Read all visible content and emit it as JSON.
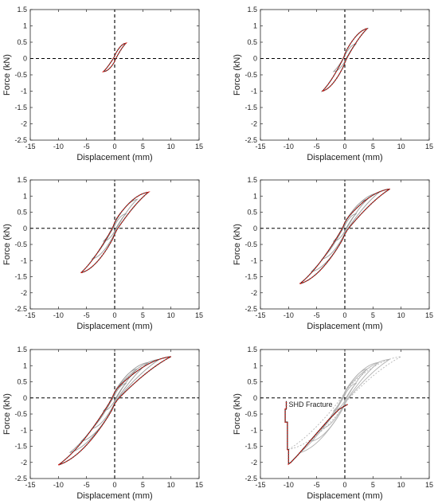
{
  "figure": {
    "colors": {
      "axes": "#262626",
      "zero_lines": "#000000",
      "loop_grey": "#9a9a9a",
      "loop_red": "#d9201a",
      "loop_dark": "#2b2b2b"
    }
  },
  "chart_data": [
    {
      "type": "line",
      "xlabel": "Displacement (mm)",
      "ylabel": "Force (kN)",
      "xlim": [
        -15,
        15
      ],
      "ylim": [
        -2.5,
        1.5
      ],
      "xticks": [
        -15,
        -10,
        -5,
        0,
        5,
        10,
        15
      ],
      "yticks": [
        1.5,
        1,
        0.5,
        0,
        -0.5,
        -1,
        -1.5,
        -2,
        -2.5
      ],
      "zero_lines": "dashed",
      "grid": false,
      "loops": [
        {
          "amplitude_mm": 2,
          "peak_force_kN": 0.47,
          "min_force_kN": -0.4,
          "style": "red-dotted"
        }
      ]
    },
    {
      "type": "line",
      "xlabel": "Displacement (mm)",
      "ylabel": "Force (kN)",
      "xlim": [
        -15,
        15
      ],
      "ylim": [
        -2.5,
        1.5
      ],
      "xticks": [
        -15,
        -10,
        -5,
        0,
        5,
        10,
        15
      ],
      "yticks": [
        1.5,
        1,
        0.5,
        0,
        -0.5,
        -1,
        -1.5,
        -2,
        -2.5
      ],
      "zero_lines": "dashed",
      "grid": false,
      "loops": [
        {
          "amplitude_mm": 2,
          "peak_force_kN": 0.45,
          "min_force_kN": -0.4,
          "style": "grey"
        },
        {
          "amplitude_mm": 4,
          "peak_force_kN": 0.92,
          "min_force_kN": -1.0,
          "style": "red-dotted"
        }
      ]
    },
    {
      "type": "line",
      "xlabel": "Displacement (mm)",
      "ylabel": "Force (kN)",
      "xlim": [
        -15,
        15
      ],
      "ylim": [
        -2.5,
        1.5
      ],
      "xticks": [
        -15,
        -10,
        -5,
        0,
        5,
        10,
        15
      ],
      "yticks": [
        1.5,
        1,
        0.5,
        0,
        -0.5,
        -1,
        -1.5,
        -2,
        -2.5
      ],
      "zero_lines": "dashed",
      "grid": false,
      "loops": [
        {
          "amplitude_mm": 2,
          "peak_force_kN": 0.45,
          "min_force_kN": -0.4,
          "style": "grey"
        },
        {
          "amplitude_mm": 4,
          "peak_force_kN": 0.9,
          "min_force_kN": -0.95,
          "style": "grey"
        },
        {
          "amplitude_mm": 6,
          "peak_force_kN": 1.12,
          "min_force_kN": -1.38,
          "style": "red-dotted"
        }
      ]
    },
    {
      "type": "line",
      "xlabel": "Displacement (mm)",
      "ylabel": "Force (kN)",
      "xlim": [
        -15,
        15
      ],
      "ylim": [
        -2.5,
        1.5
      ],
      "xticks": [
        -15,
        -10,
        -5,
        0,
        5,
        10,
        15
      ],
      "yticks": [
        1.5,
        1,
        0.5,
        0,
        -0.5,
        -1,
        -1.5,
        -2,
        -2.5
      ],
      "zero_lines": "dashed",
      "grid": false,
      "loops": [
        {
          "amplitude_mm": 2,
          "peak_force_kN": 0.45,
          "min_force_kN": -0.4,
          "style": "grey"
        },
        {
          "amplitude_mm": 4,
          "peak_force_kN": 0.9,
          "min_force_kN": -0.95,
          "style": "grey"
        },
        {
          "amplitude_mm": 6,
          "peak_force_kN": 1.1,
          "min_force_kN": -1.35,
          "style": "grey"
        },
        {
          "amplitude_mm": 8,
          "peak_force_kN": 1.22,
          "min_force_kN": -1.72,
          "style": "red-dotted"
        }
      ]
    },
    {
      "type": "line",
      "xlabel": "Displacement (mm)",
      "ylabel": "Force (kN)",
      "xlim": [
        -15,
        15
      ],
      "ylim": [
        -2.5,
        1.5
      ],
      "xticks": [
        -15,
        -10,
        -5,
        0,
        5,
        10,
        15
      ],
      "yticks": [
        1.5,
        1,
        0.5,
        0,
        -0.5,
        -1,
        -1.5,
        -2,
        -2.5
      ],
      "zero_lines": "dashed",
      "grid": false,
      "loops": [
        {
          "amplitude_mm": 2,
          "peak_force_kN": 0.45,
          "min_force_kN": -0.4,
          "style": "grey"
        },
        {
          "amplitude_mm": 4,
          "peak_force_kN": 0.9,
          "min_force_kN": -0.95,
          "style": "grey"
        },
        {
          "amplitude_mm": 6,
          "peak_force_kN": 1.1,
          "min_force_kN": -1.35,
          "style": "grey"
        },
        {
          "amplitude_mm": 8,
          "peak_force_kN": 1.2,
          "min_force_kN": -1.7,
          "style": "grey"
        },
        {
          "amplitude_mm": 10,
          "peak_force_kN": 1.28,
          "min_force_kN": -2.08,
          "style": "red-dotted"
        }
      ]
    },
    {
      "type": "line",
      "xlabel": "Displacement (mm)",
      "ylabel": "Force (kN)",
      "xlim": [
        -15,
        15
      ],
      "ylim": [
        -2.5,
        1.5
      ],
      "xticks": [
        -15,
        -10,
        -5,
        0,
        5,
        10,
        15
      ],
      "yticks": [
        1.5,
        1,
        0.5,
        0,
        -0.5,
        -1,
        -1.5,
        -2,
        -2.5
      ],
      "zero_lines": "dashed",
      "grid": false,
      "loops": [
        {
          "amplitude_mm": 2,
          "peak_force_kN": 0.45,
          "min_force_kN": -0.4,
          "style": "light-grey"
        },
        {
          "amplitude_mm": 4,
          "peak_force_kN": 0.9,
          "min_force_kN": -0.95,
          "style": "light-grey"
        },
        {
          "amplitude_mm": 6,
          "peak_force_kN": 1.1,
          "min_force_kN": -1.35,
          "style": "light-grey"
        },
        {
          "amplitude_mm": 8,
          "peak_force_kN": 1.2,
          "min_force_kN": -1.7,
          "style": "light-grey"
        },
        {
          "amplitude_mm": 10,
          "peak_force_kN": 1.28,
          "min_force_kN": -1.6,
          "style": "light-grey-dotted"
        }
      ],
      "fracture_path": {
        "x": [
          0.5,
          -1,
          -3,
          -5,
          -7,
          -8.5,
          -9.6,
          -10,
          -10,
          -10.2,
          -10.2,
          -10.6,
          -10.6,
          -10.4,
          -10.4
        ],
        "y": [
          -0.2,
          -0.35,
          -0.7,
          -1.1,
          -1.5,
          -1.8,
          -2.0,
          -2.05,
          -1.6,
          -1.6,
          -0.75,
          -0.75,
          -0.35,
          -0.35,
          -0.1
        ]
      },
      "annotation": {
        "text": "SHD Fracture",
        "x": -10.4,
        "y": -0.2
      }
    }
  ]
}
